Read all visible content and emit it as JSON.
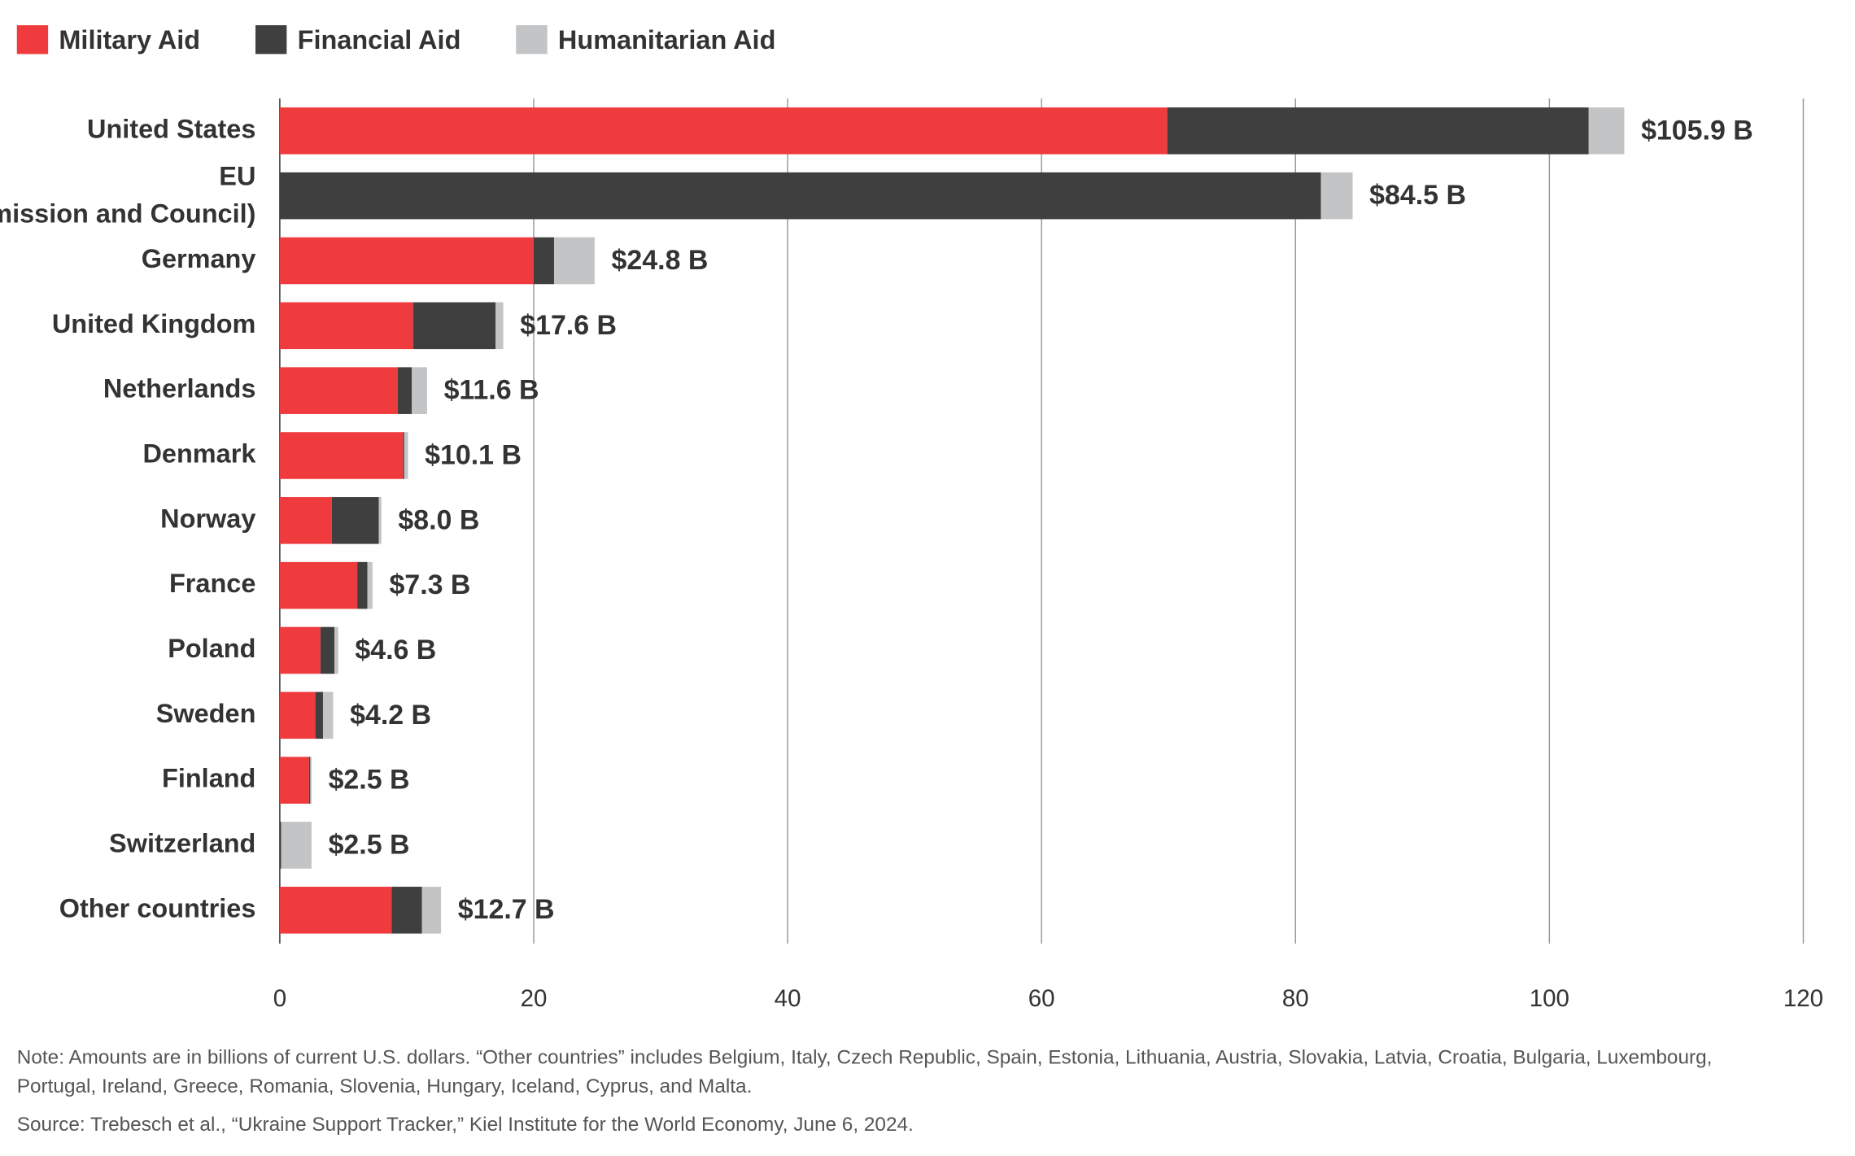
{
  "chart_data": {
    "type": "stacked-barh",
    "categories": [
      "United States",
      "EU (Commission and Council)",
      "Germany",
      "United Kingdom",
      "Netherlands",
      "Denmark",
      "Norway",
      "France",
      "Poland",
      "Sweden",
      "Finland",
      "Switzerland",
      "Other countries"
    ],
    "series": [
      {
        "name": "Military Aid",
        "color": "#ef3b3e",
        "values": [
          69.9,
          0,
          20.0,
          10.5,
          9.3,
          9.7,
          4.1,
          6.1,
          3.2,
          2.8,
          2.3,
          0,
          8.8
        ]
      },
      {
        "name": "Financial Aid",
        "color": "#3f3f3f",
        "values": [
          33.2,
          82.0,
          1.6,
          6.5,
          1.1,
          0.1,
          3.7,
          0.8,
          1.1,
          0.6,
          0.1,
          0.1,
          2.4
        ]
      },
      {
        "name": "Humanitarian Aid",
        "color": "#c2c4c6",
        "values": [
          2.8,
          2.5,
          3.2,
          0.6,
          1.2,
          0.3,
          0.2,
          0.4,
          0.3,
          0.8,
          0.1,
          2.4,
          1.5
        ]
      }
    ],
    "totals": {
      "values": [
        105.9,
        84.5,
        24.8,
        17.6,
        11.6,
        10.1,
        8.0,
        7.3,
        4.6,
        4.2,
        2.5,
        2.5,
        12.7
      ],
      "value_labels": [
        "$105.9 B",
        "$84.5 B",
        "$24.8 B",
        "$17.6 B",
        "$11.6 B",
        "$10.1 B",
        "$8.0 B",
        "$7.3 B",
        "$4.6 B",
        "$4.2 B",
        "$2.5 B",
        "$2.5 B",
        "$12.7 B"
      ]
    },
    "xlim": [
      0,
      120
    ],
    "xticks": [
      0,
      20,
      40,
      60,
      80,
      100,
      120
    ],
    "grid": true,
    "note": "Note: Amounts are in billions of current U.S. dollars. “Other countries” includes Belgium, Italy, Czech Republic, Spain, Estonia, Lithuania, Austria, Slovakia, Latvia, Croatia, Bulgaria, Luxembourg, Portugal, Ireland, Greece, Romania, Slovenia, Hungary, Iceland, Cyprus, and Malta.",
    "source": "Source: Trebesch et al., “Ukraine Support Tracker,” Kiel Institute for the World Economy, June 6, 2024."
  }
}
